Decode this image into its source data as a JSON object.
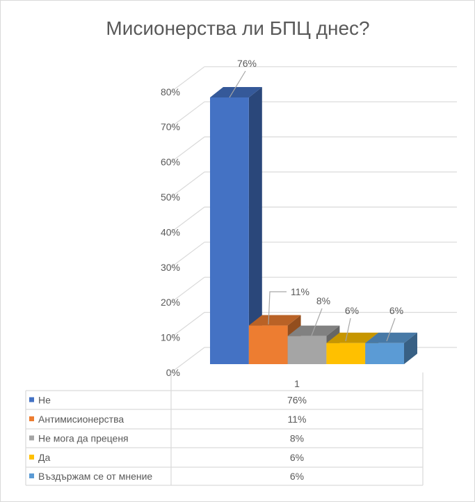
{
  "chart_data": {
    "type": "bar",
    "style": "3d-clustered-column-with-data-table",
    "title": "Мисионерства ли БПЦ днес?",
    "categories": [
      "1"
    ],
    "series": [
      {
        "name": "Не",
        "values": [
          76
        ],
        "label": "76%",
        "color": "#4472C4"
      },
      {
        "name": "Антимисионерства",
        "values": [
          11
        ],
        "label": "11%",
        "color": "#ED7D31"
      },
      {
        "name": "Не мога да преценя",
        "values": [
          8
        ],
        "label": "8%",
        "color": "#A5A5A5"
      },
      {
        "name": "Да",
        "values": [
          6
        ],
        "label": "6%",
        "color": "#FFC000"
      },
      {
        "name": "Въздържам се от мнение",
        "values": [
          6
        ],
        "label": "6%",
        "color": "#5B9BD5"
      }
    ],
    "yticks": [
      "0%",
      "10%",
      "20%",
      "30%",
      "40%",
      "50%",
      "60%",
      "70%",
      "80%"
    ],
    "ylim": [
      0,
      80
    ],
    "grid": true,
    "legend": "data-table-below"
  }
}
